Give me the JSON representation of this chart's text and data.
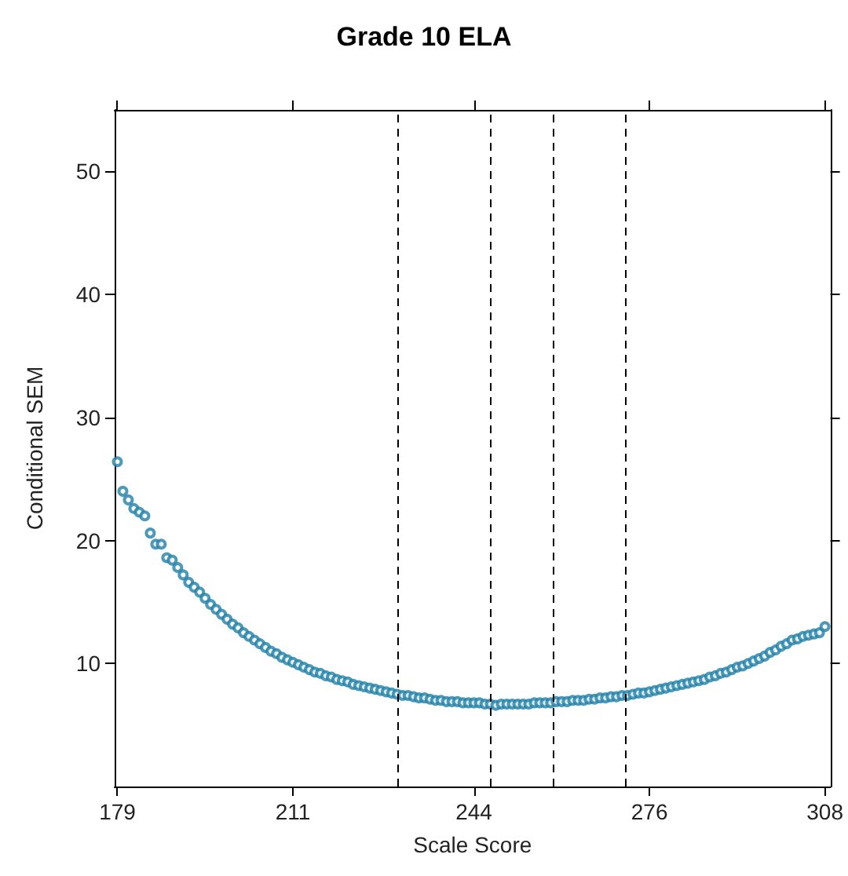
{
  "chart_data": {
    "type": "scatter",
    "title": "Grade 10 ELA",
    "xlabel": "Scale Score",
    "ylabel": "Conditional SEM",
    "x": [
      179,
      180,
      181,
      182,
      183,
      184,
      185,
      186,
      187,
      188,
      189,
      190,
      191,
      192,
      193,
      194,
      195,
      196,
      197,
      198,
      199,
      200,
      201,
      202,
      203,
      204,
      205,
      206,
      207,
      208,
      209,
      210,
      211,
      212,
      213,
      214,
      215,
      216,
      217,
      218,
      219,
      220,
      221,
      222,
      223,
      224,
      225,
      226,
      227,
      228,
      229,
      230,
      231,
      232,
      233,
      234,
      235,
      236,
      237,
      238,
      239,
      240,
      241,
      242,
      243,
      244,
      245,
      246,
      247,
      248,
      249,
      250,
      251,
      252,
      253,
      254,
      255,
      256,
      257,
      258,
      259,
      260,
      261,
      262,
      263,
      264,
      265,
      266,
      267,
      268,
      269,
      270,
      271,
      272,
      273,
      274,
      275,
      276,
      277,
      278,
      279,
      280,
      281,
      282,
      283,
      284,
      285,
      286,
      287,
      288,
      289,
      290,
      291,
      292,
      293,
      294,
      295,
      296,
      297,
      298,
      299,
      300,
      301,
      302,
      303,
      304,
      305,
      306,
      307,
      308
    ],
    "series": [
      {
        "color": "#1f7fa8",
        "values": [
          26.4,
          24.0,
          23.3,
          22.6,
          22.3,
          22.0,
          20.6,
          19.7,
          19.7,
          18.6,
          18.4,
          17.8,
          17.2,
          16.6,
          16.2,
          15.8,
          15.3,
          14.8,
          14.4,
          14.0,
          13.6,
          13.2,
          12.9,
          12.5,
          12.2,
          11.9,
          11.6,
          11.3,
          11.0,
          10.8,
          10.5,
          10.3,
          10.1,
          9.9,
          9.7,
          9.5,
          9.3,
          9.2,
          9.0,
          8.9,
          8.7,
          8.6,
          8.5,
          8.3,
          8.2,
          8.1,
          8.0,
          7.9,
          7.8,
          7.7,
          7.6,
          7.5,
          7.4,
          7.4,
          7.3,
          7.2,
          7.2,
          7.1,
          7.0,
          7.0,
          6.9,
          6.9,
          6.9,
          6.8,
          6.8,
          6.8,
          6.8,
          6.7,
          6.7,
          6.6,
          6.7,
          6.7,
          6.7,
          6.7,
          6.7,
          6.7,
          6.8,
          6.8,
          6.8,
          6.8,
          6.9,
          6.9,
          6.9,
          7.0,
          7.0,
          7.0,
          7.1,
          7.1,
          7.2,
          7.2,
          7.3,
          7.3,
          7.4,
          7.4,
          7.5,
          7.6,
          7.6,
          7.7,
          7.8,
          7.9,
          8.0,
          8.1,
          8.2,
          8.3,
          8.4,
          8.5,
          8.6,
          8.7,
          8.9,
          9.0,
          9.2,
          9.3,
          9.5,
          9.7,
          9.8,
          10.0,
          10.2,
          10.4,
          10.6,
          10.9,
          11.1,
          11.4,
          11.6,
          11.9,
          12.0,
          12.2,
          12.3,
          12.4,
          12.5,
          13.0
        ]
      }
    ],
    "xlim": [
      178.5,
      309
    ],
    "xticks": [
      179,
      211,
      244,
      276,
      308
    ],
    "ylim": [
      0,
      55
    ],
    "yticks": [
      10,
      20,
      30,
      40,
      50
    ],
    "ref_lines": [
      {
        "axis": "x",
        "value": 230,
        "color": "#000000",
        "line_style": "dashed"
      },
      {
        "axis": "x",
        "value": 247,
        "color": "#000000",
        "line_style": "dashed"
      },
      {
        "axis": "x",
        "value": 258.5,
        "color": "#000000",
        "line_style": "dashed"
      },
      {
        "axis": "x",
        "value": 271.5,
        "color": "#000000",
        "line_style": "dashed"
      }
    ],
    "grid": false,
    "marker": "circle"
  }
}
